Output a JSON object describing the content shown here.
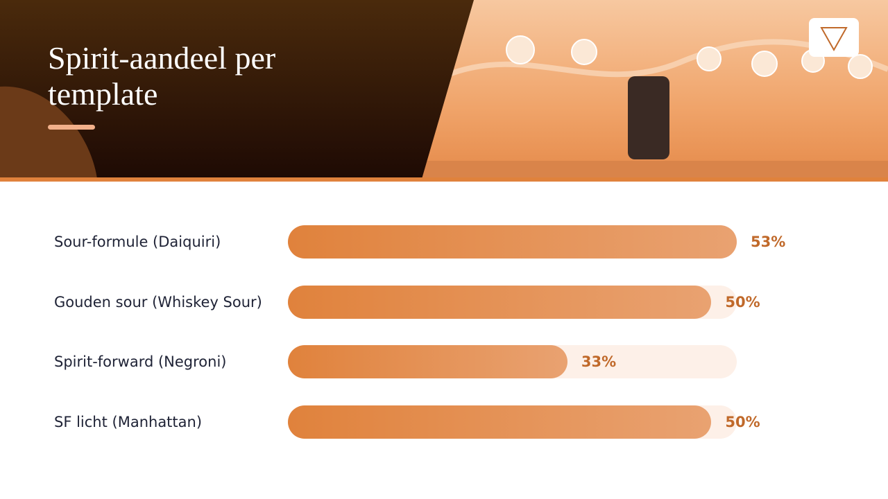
{
  "chart_data": {
    "type": "bar",
    "orientation": "horizontal",
    "title": "Spirit-aandeel per template",
    "categories": [
      "Sour-formule (Daiquiri)",
      "Gouden sour (Whiskey Sour)",
      "Spirit-forward (Negroni)",
      "SF licht (Manhattan)"
    ],
    "values": [
      53,
      50,
      33,
      50
    ],
    "value_labels": [
      "53%",
      "50%",
      "33%",
      "50%"
    ],
    "xlim": [
      0,
      53
    ],
    "color": "#e0823c",
    "track_color": "#fdf0e8"
  }
}
